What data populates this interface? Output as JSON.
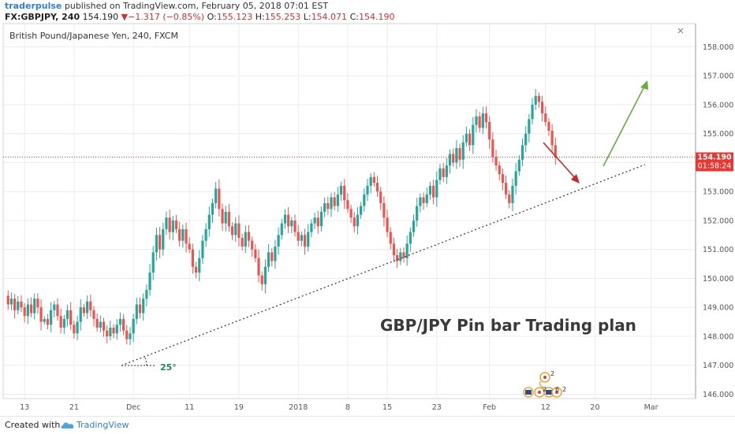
{
  "header": {
    "author": "traderpulse",
    "published": "published on TradingView.com, February 05, 2018 07:01 EST",
    "symbol": "FX:GBPJPY, 240",
    "last": "154.190",
    "change_arrow": "▼",
    "change": "−1.317 (−0.85%)",
    "o_label": "O:",
    "o_value": "155.123",
    "h_label": "H:",
    "h_value": "155.253",
    "l_label": "L:",
    "l_value": "154.071",
    "c_label": "C:",
    "c_value": "154.190"
  },
  "footer": {
    "created_with": "Created with",
    "brand": "TradingView"
  },
  "chart_data": {
    "type": "candlestick",
    "title": "British Pound/Japanese Yen, 240, FXCM",
    "annotation_text": "GBP/JPY Pin bar Trading plan",
    "angle_label": "25°",
    "current_price_label": "154.190",
    "countdown_label": "01:58:24",
    "current_price": 154.19,
    "ylim": [
      145.85,
      158.8
    ],
    "y_ticks": [
      "146.000",
      "147.000",
      "148.000",
      "149.000",
      "150.000",
      "151.000",
      "152.000",
      "153.000",
      "154.000",
      "155.000",
      "156.000",
      "157.000",
      "158.000"
    ],
    "x_ticks": [
      {
        "label": "13",
        "i": 6
      },
      {
        "label": "21",
        "i": 21
      },
      {
        "label": "Dec",
        "i": 39
      },
      {
        "label": "11",
        "i": 56
      },
      {
        "label": "19",
        "i": 71
      },
      {
        "label": "2018",
        "i": 89
      },
      {
        "label": "8",
        "i": 104
      },
      {
        "label": "15",
        "i": 116
      },
      {
        "label": "23",
        "i": 131
      },
      {
        "label": "Feb",
        "i": 147
      },
      {
        "label": "12",
        "i": 164
      },
      {
        "label": "20",
        "i": 179
      },
      {
        "label": "Mar",
        "i": 196
      }
    ],
    "x_slots": 210,
    "closes": [
      149.4,
      149.1,
      149.3,
      148.9,
      149.2,
      149.0,
      148.7,
      149.1,
      148.8,
      149.3,
      149.0,
      148.5,
      148.6,
      148.4,
      148.9,
      149.1,
      148.7,
      148.3,
      148.6,
      148.9,
      148.4,
      148.1,
      148.5,
      149.0,
      148.8,
      149.2,
      148.9,
      148.6,
      148.3,
      148.5,
      148.2,
      148.0,
      148.3,
      148.1,
      148.4,
      148.6,
      148.2,
      147.9,
      148.1,
      148.6,
      149.1,
      148.8,
      149.3,
      149.6,
      150.2,
      150.9,
      151.5,
      151.0,
      151.7,
      152.1,
      151.6,
      152.0,
      151.7,
      151.3,
      151.7,
      151.2,
      151.0,
      150.4,
      150.2,
      150.7,
      151.3,
      151.7,
      152.2,
      152.6,
      153.1,
      152.4,
      151.9,
      152.3,
      151.8,
      151.5,
      151.9,
      151.4,
      151.1,
      151.6,
      151.3,
      151.0,
      150.7,
      150.1,
      149.8,
      150.4,
      150.9,
      150.6,
      151.1,
      151.5,
      151.9,
      152.2,
      151.8,
      152.0,
      151.6,
      151.3,
      151.5,
      151.1,
      151.6,
      151.9,
      152.1,
      151.8,
      152.3,
      152.6,
      152.4,
      152.8,
      152.5,
      152.9,
      153.2,
      152.7,
      152.4,
      152.1,
      151.8,
      152.2,
      152.5,
      152.9,
      153.2,
      153.5,
      153.3,
      153.0,
      152.6,
      152.1,
      151.6,
      151.2,
      150.8,
      150.6,
      150.9,
      150.7,
      151.2,
      151.6,
      152.0,
      152.5,
      152.8,
      152.6,
      152.9,
      153.2,
      152.8,
      153.4,
      153.8,
      153.5,
      153.9,
      154.3,
      154.0,
      154.5,
      154.1,
      154.7,
      155.0,
      154.6,
      155.3,
      155.6,
      155.2,
      155.7,
      155.4,
      154.8,
      154.2,
      153.9,
      153.6,
      153.3,
      152.9,
      152.6,
      153.2,
      153.7,
      154.1,
      154.6,
      155.0,
      155.5,
      156.0,
      156.3,
      156.1,
      155.7,
      155.4,
      155.1,
      154.6,
      154.2
    ]
  }
}
